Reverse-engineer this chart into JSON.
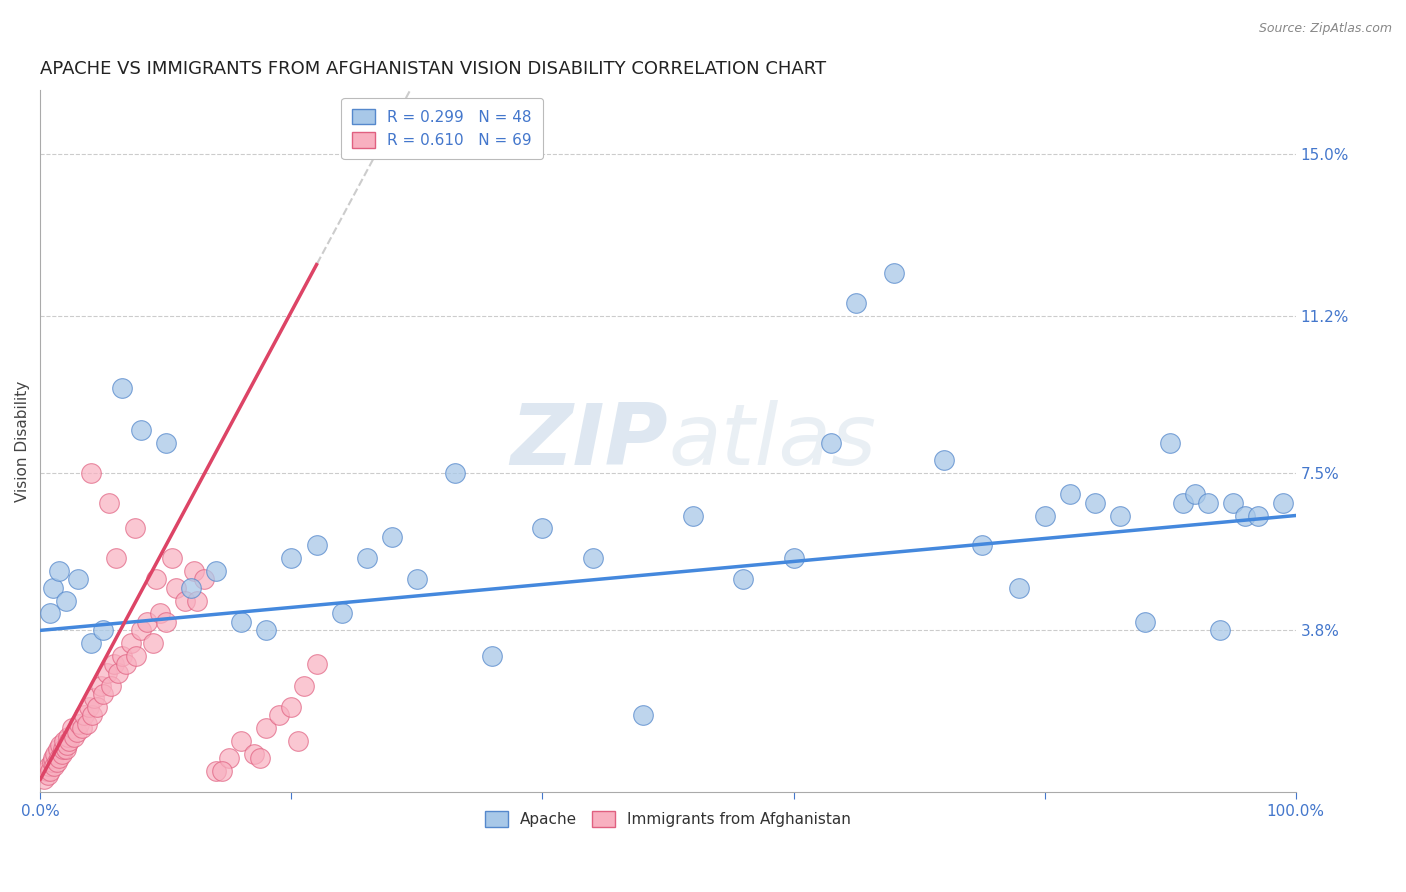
{
  "title": "APACHE VS IMMIGRANTS FROM AFGHANISTAN VISION DISABILITY CORRELATION CHART",
  "source": "Source: ZipAtlas.com",
  "xlabel": "",
  "ylabel": "Vision Disability",
  "watermark_zip": "ZIP",
  "watermark_atlas": "atlas",
  "xlim": [
    0.0,
    100.0
  ],
  "ylim": [
    0.0,
    16.5
  ],
  "yticks": [
    3.8,
    7.5,
    11.2,
    15.0
  ],
  "series1_label": "Apache",
  "series1_color": "#a8c8e8",
  "series1_edge_color": "#5588cc",
  "series1_line_color": "#4488dd",
  "series1_R": 0.299,
  "series1_N": 48,
  "series2_label": "Immigrants from Afghanistan",
  "series2_color": "#f8b0c0",
  "series2_edge_color": "#e06080",
  "series2_line_color": "#dd4466",
  "series2_R": 0.61,
  "series2_N": 69,
  "apache_x": [
    0.8,
    1.0,
    1.5,
    2.0,
    3.0,
    4.0,
    5.0,
    6.5,
    8.0,
    10.0,
    12.0,
    14.0,
    16.0,
    18.0,
    20.0,
    22.0,
    24.0,
    26.0,
    28.0,
    30.0,
    33.0,
    36.0,
    40.0,
    44.0,
    48.0,
    52.0,
    56.0,
    60.0,
    63.0,
    65.0,
    68.0,
    72.0,
    75.0,
    78.0,
    80.0,
    82.0,
    84.0,
    86.0,
    88.0,
    90.0,
    91.0,
    92.0,
    93.0,
    94.0,
    95.0,
    96.0,
    97.0,
    99.0
  ],
  "apache_y": [
    4.2,
    4.8,
    5.2,
    4.5,
    5.0,
    3.5,
    3.8,
    9.5,
    8.5,
    8.2,
    4.8,
    5.2,
    4.0,
    3.8,
    5.5,
    5.8,
    4.2,
    5.5,
    6.0,
    5.0,
    7.5,
    3.2,
    6.2,
    5.5,
    1.8,
    6.5,
    5.0,
    5.5,
    8.2,
    11.5,
    12.2,
    7.8,
    5.8,
    4.8,
    6.5,
    7.0,
    6.8,
    6.5,
    4.0,
    8.2,
    6.8,
    7.0,
    6.8,
    3.8,
    6.8,
    6.5,
    6.5,
    6.8
  ],
  "afghan_x": [
    0.3,
    0.5,
    0.6,
    0.7,
    0.8,
    0.9,
    1.0,
    1.1,
    1.2,
    1.3,
    1.4,
    1.5,
    1.6,
    1.7,
    1.8,
    1.9,
    2.0,
    2.1,
    2.2,
    2.3,
    2.5,
    2.7,
    2.9,
    3.1,
    3.3,
    3.5,
    3.7,
    3.9,
    4.1,
    4.3,
    4.5,
    4.8,
    5.0,
    5.3,
    5.6,
    5.9,
    6.2,
    6.5,
    6.8,
    7.2,
    7.6,
    8.0,
    8.5,
    9.0,
    9.5,
    10.0,
    10.8,
    11.5,
    12.2,
    13.0,
    14.0,
    15.0,
    16.0,
    17.0,
    18.0,
    19.0,
    20.0,
    21.0,
    22.0,
    4.0,
    5.5,
    6.0,
    7.5,
    9.2,
    10.5,
    12.5,
    14.5,
    17.5,
    20.5
  ],
  "afghan_y": [
    0.3,
    0.5,
    0.4,
    0.6,
    0.5,
    0.7,
    0.8,
    0.6,
    0.9,
    0.7,
    1.0,
    0.8,
    1.1,
    0.9,
    1.0,
    1.2,
    1.0,
    1.1,
    1.3,
    1.2,
    1.5,
    1.3,
    1.4,
    1.6,
    1.5,
    1.8,
    1.6,
    2.0,
    1.8,
    2.2,
    2.0,
    2.5,
    2.3,
    2.8,
    2.5,
    3.0,
    2.8,
    3.2,
    3.0,
    3.5,
    3.2,
    3.8,
    4.0,
    3.5,
    4.2,
    4.0,
    4.8,
    4.5,
    5.2,
    5.0,
    0.5,
    0.8,
    1.2,
    0.9,
    1.5,
    1.8,
    2.0,
    2.5,
    3.0,
    7.5,
    6.8,
    5.5,
    6.2,
    5.0,
    5.5,
    4.5,
    0.5,
    0.8,
    1.2
  ],
  "background_color": "#ffffff",
  "grid_color": "#cccccc",
  "title_fontsize": 13,
  "axis_label_fontsize": 11,
  "tick_fontsize": 11,
  "legend_fontsize": 11
}
